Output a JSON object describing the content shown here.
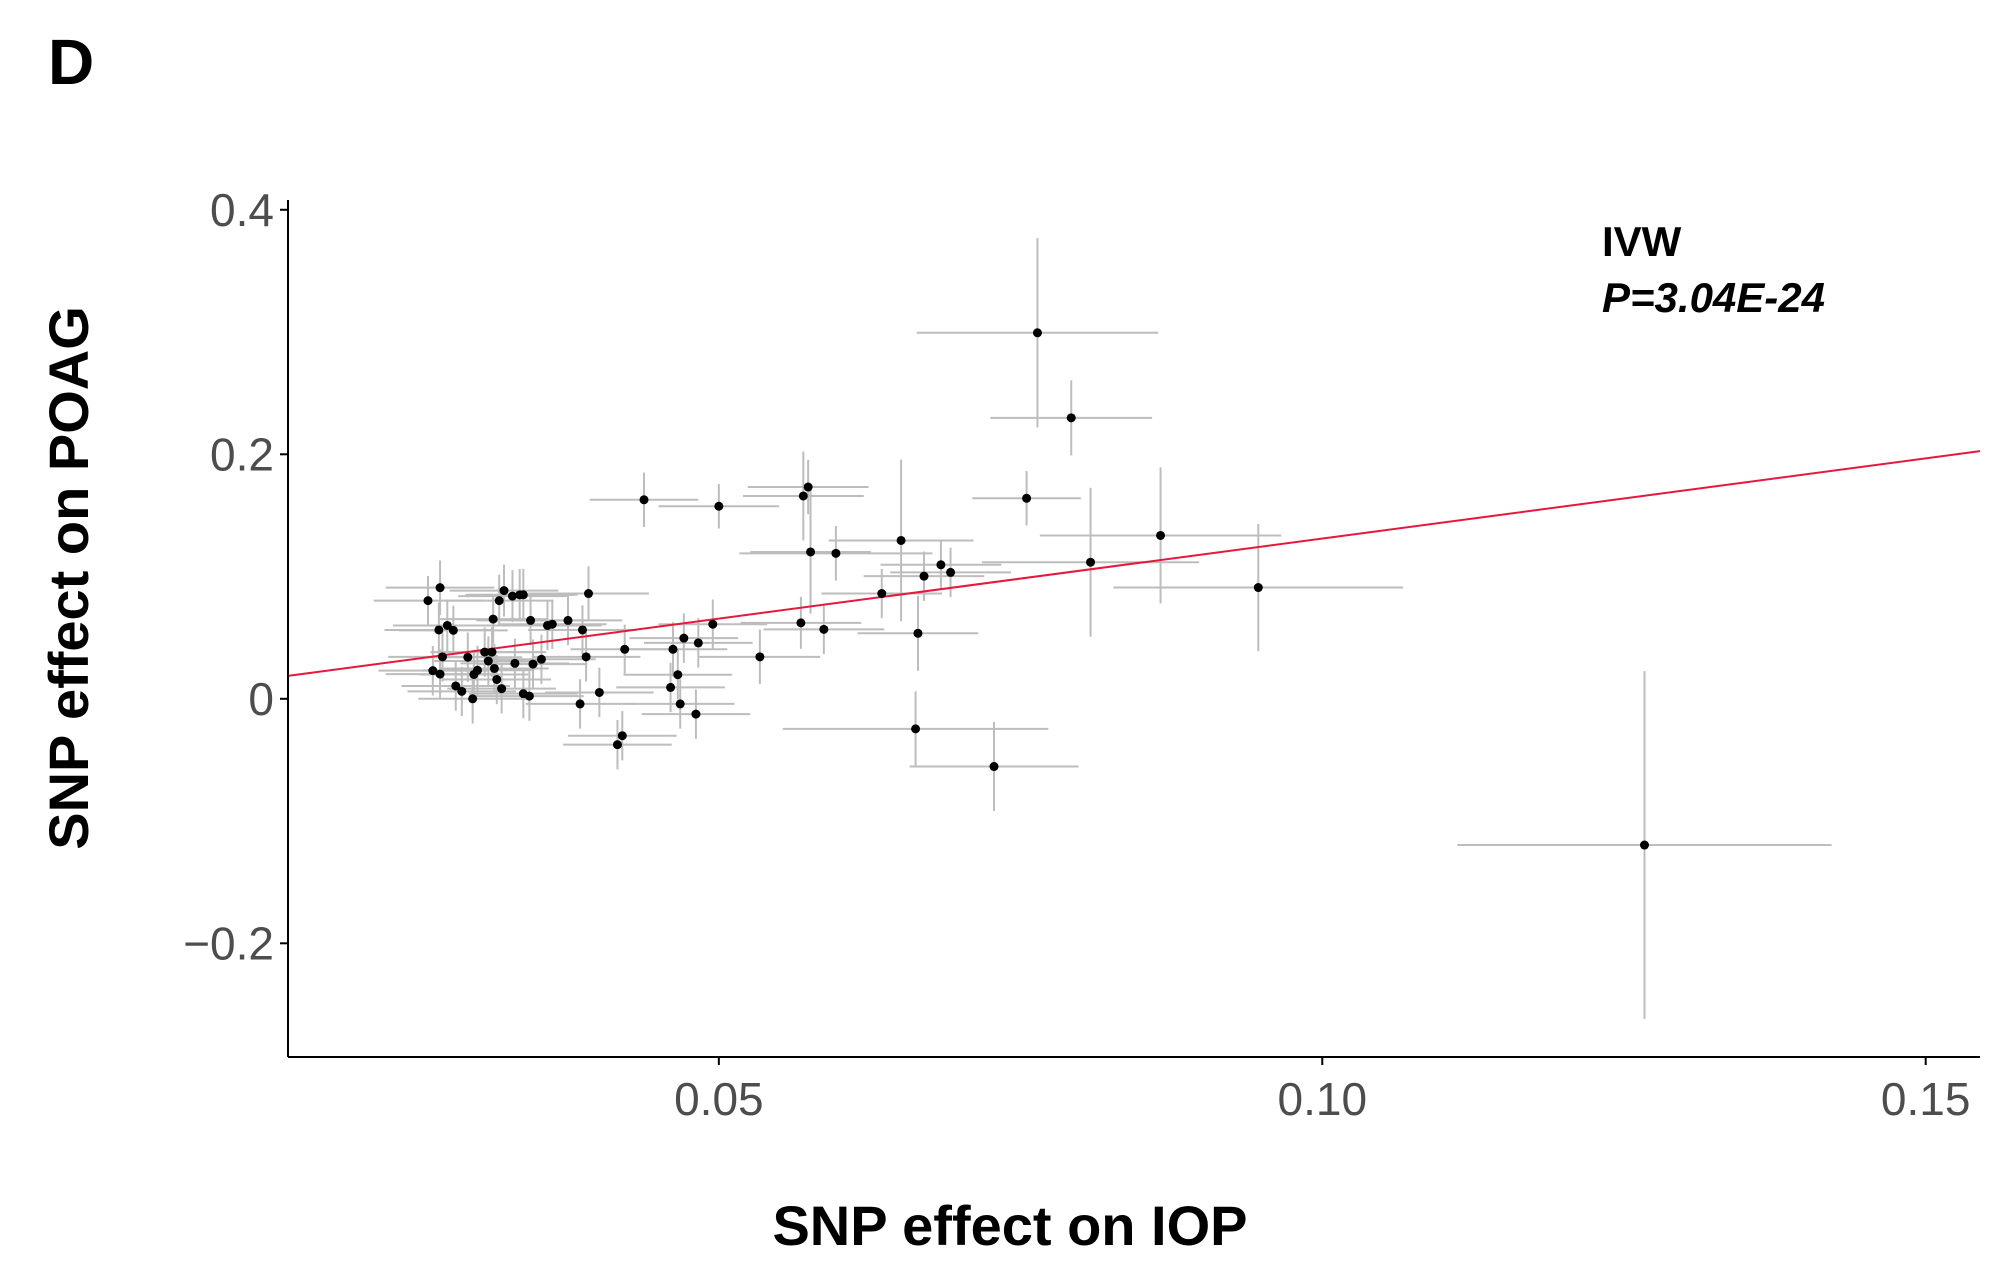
{
  "panel_label": "D",
  "colors": {
    "point": "#000000",
    "error_bar": "#bdbdbd",
    "fit_line": "#e8173c",
    "axis": "#000000",
    "tick_label": "#4d4d4d"
  },
  "annotation": {
    "method": "IVW",
    "p_value": "P=3.04E-24"
  },
  "chart_data": {
    "type": "scatter",
    "title": "",
    "xlabel": "SNP effect on IOP",
    "ylabel": "SNP effect on  POAG",
    "xlim": [
      0.0143,
      0.1545
    ],
    "ylim": [
      -0.293,
      0.408
    ],
    "x_ticks": [
      0.05,
      0.1,
      0.15
    ],
    "x_tick_labels": [
      "0.05",
      "0.10",
      "0.15"
    ],
    "y_ticks": [
      -0.2,
      0,
      0.2,
      0.4
    ],
    "y_tick_labels": [
      "−0.2",
      "0",
      "0.2",
      "0.4"
    ],
    "grid": false,
    "legend": "none",
    "fit_line": {
      "method": "IVW",
      "slope": 1.311,
      "intercept": 0.0
    },
    "points": [
      {
        "x": 0.0259,
        "y": 0.0803,
        "x_err": 0.0045,
        "y_err": 0.0202
      },
      {
        "x": 0.0269,
        "y": 0.0909,
        "x_err": 0.0045,
        "y_err": 0.0223
      },
      {
        "x": 0.0268,
        "y": 0.0563,
        "x_err": 0.0045,
        "y_err": 0.0223
      },
      {
        "x": 0.0275,
        "y": 0.06,
        "x_err": 0.0045,
        "y_err": 0.0212
      },
      {
        "x": 0.028,
        "y": 0.056,
        "x_err": 0.0045,
        "y_err": 0.0202
      },
      {
        "x": 0.0271,
        "y": 0.0343,
        "x_err": 0.0045,
        "y_err": 0.0202
      },
      {
        "x": 0.0263,
        "y": 0.023,
        "x_err": 0.0045,
        "y_err": 0.0202
      },
      {
        "x": 0.0269,
        "y": 0.0202,
        "x_err": 0.0045,
        "y_err": 0.0202
      },
      {
        "x": 0.0282,
        "y": 0.0105,
        "x_err": 0.0045,
        "y_err": 0.0202
      },
      {
        "x": 0.0287,
        "y": 0.0061,
        "x_err": 0.0045,
        "y_err": 0.0202
      },
      {
        "x": 0.0292,
        "y": 0.034,
        "x_err": 0.0045,
        "y_err": 0.0202
      },
      {
        "x": 0.0296,
        "y": 0.0,
        "x_err": 0.0045,
        "y_err": 0.0202
      },
      {
        "x": 0.0297,
        "y": 0.0199,
        "x_err": 0.0045,
        "y_err": 0.0202
      },
      {
        "x": 0.03,
        "y": 0.0233,
        "x_err": 0.0045,
        "y_err": 0.0202
      },
      {
        "x": 0.0306,
        "y": 0.0382,
        "x_err": 0.0045,
        "y_err": 0.0202
      },
      {
        "x": 0.0309,
        "y": 0.0309,
        "x_err": 0.0045,
        "y_err": 0.0202
      },
      {
        "x": 0.0312,
        "y": 0.0382,
        "x_err": 0.0045,
        "y_err": 0.0202
      },
      {
        "x": 0.0314,
        "y": 0.0248,
        "x_err": 0.0045,
        "y_err": 0.0202
      },
      {
        "x": 0.0313,
        "y": 0.0652,
        "x_err": 0.0045,
        "y_err": 0.0202
      },
      {
        "x": 0.0316,
        "y": 0.0158,
        "x_err": 0.0045,
        "y_err": 0.0202
      },
      {
        "x": 0.0318,
        "y": 0.0803,
        "x_err": 0.0045,
        "y_err": 0.0212
      },
      {
        "x": 0.0322,
        "y": 0.0885,
        "x_err": 0.0045,
        "y_err": 0.0212
      },
      {
        "x": 0.032,
        "y": 0.0083,
        "x_err": 0.0045,
        "y_err": 0.0202
      },
      {
        "x": 0.0329,
        "y": 0.084,
        "x_err": 0.0045,
        "y_err": 0.0212
      },
      {
        "x": 0.0331,
        "y": 0.029,
        "x_err": 0.0045,
        "y_err": 0.0202
      },
      {
        "x": 0.0335,
        "y": 0.085,
        "x_err": 0.0045,
        "y_err": 0.0212
      },
      {
        "x": 0.0338,
        "y": 0.0851,
        "x_err": 0.0045,
        "y_err": 0.0212
      },
      {
        "x": 0.0338,
        "y": 0.0042,
        "x_err": 0.0045,
        "y_err": 0.0202
      },
      {
        "x": 0.0343,
        "y": 0.0022,
        "x_err": 0.0045,
        "y_err": 0.0202
      },
      {
        "x": 0.0344,
        "y": 0.0641,
        "x_err": 0.0045,
        "y_err": 0.0202
      },
      {
        "x": 0.0346,
        "y": 0.0284,
        "x_err": 0.0045,
        "y_err": 0.0202
      },
      {
        "x": 0.0353,
        "y": 0.0323,
        "x_err": 0.0045,
        "y_err": 0.0202
      },
      {
        "x": 0.0358,
        "y": 0.06,
        "x_err": 0.0045,
        "y_err": 0.0202
      },
      {
        "x": 0.0362,
        "y": 0.061,
        "x_err": 0.0045,
        "y_err": 0.0202
      },
      {
        "x": 0.0375,
        "y": 0.0641,
        "x_err": 0.0045,
        "y_err": 0.0202
      },
      {
        "x": 0.0387,
        "y": 0.0563,
        "x_err": 0.0045,
        "y_err": 0.0202
      },
      {
        "x": 0.039,
        "y": 0.0343,
        "x_err": 0.0045,
        "y_err": 0.0202
      },
      {
        "x": 0.0392,
        "y": 0.0861,
        "x_err": 0.005,
        "y_err": 0.0223
      },
      {
        "x": 0.0385,
        "y": -0.0042,
        "x_err": 0.0045,
        "y_err": 0.0202
      },
      {
        "x": 0.0401,
        "y": 0.0052,
        "x_err": 0.0045,
        "y_err": 0.0202
      },
      {
        "x": 0.0416,
        "y": -0.0375,
        "x_err": 0.0045,
        "y_err": 0.0202
      },
      {
        "x": 0.042,
        "y": -0.0302,
        "x_err": 0.0045,
        "y_err": 0.0202
      },
      {
        "x": 0.0422,
        "y": 0.0405,
        "x_err": 0.0045,
        "y_err": 0.0202
      },
      {
        "x": 0.0438,
        "y": 0.1628,
        "x_err": 0.0045,
        "y_err": 0.0223
      },
      {
        "x": 0.0462,
        "y": 0.0405,
        "x_err": 0.0045,
        "y_err": 0.0223
      },
      {
        "x": 0.046,
        "y": 0.0093,
        "x_err": 0.0045,
        "y_err": 0.0202
      },
      {
        "x": 0.0466,
        "y": 0.0197,
        "x_err": 0.0045,
        "y_err": 0.0202
      },
      {
        "x": 0.0468,
        "y": -0.0042,
        "x_err": 0.0045,
        "y_err": 0.0202
      },
      {
        "x": 0.0471,
        "y": 0.0496,
        "x_err": 0.0045,
        "y_err": 0.0202
      },
      {
        "x": 0.0483,
        "y": 0.0457,
        "x_err": 0.0045,
        "y_err": 0.0202
      },
      {
        "x": 0.0481,
        "y": -0.0125,
        "x_err": 0.0045,
        "y_err": 0.0202
      },
      {
        "x": 0.0495,
        "y": 0.061,
        "x_err": 0.0045,
        "y_err": 0.0202
      },
      {
        "x": 0.05,
        "y": 0.1575,
        "x_err": 0.005,
        "y_err": 0.0182
      },
      {
        "x": 0.0534,
        "y": 0.0343,
        "x_err": 0.005,
        "y_err": 0.0223
      },
      {
        "x": 0.0568,
        "y": 0.0621,
        "x_err": 0.005,
        "y_err": 0.0212
      },
      {
        "x": 0.057,
        "y": 0.1659,
        "x_err": 0.005,
        "y_err": 0.0364
      },
      {
        "x": 0.0574,
        "y": 0.1732,
        "x_err": 0.005,
        "y_err": 0.0223
      },
      {
        "x": 0.0576,
        "y": 0.1201,
        "x_err": 0.005,
        "y_err": 0.0504
      },
      {
        "x": 0.0587,
        "y": 0.0568,
        "x_err": 0.005,
        "y_err": 0.0202
      },
      {
        "x": 0.0597,
        "y": 0.119,
        "x_err": 0.008,
        "y_err": 0.0223
      },
      {
        "x": 0.0635,
        "y": 0.0861,
        "x_err": 0.005,
        "y_err": 0.0202
      },
      {
        "x": 0.0651,
        "y": 0.1295,
        "x_err": 0.006,
        "y_err": 0.0661
      },
      {
        "x": 0.0663,
        "y": -0.0246,
        "x_err": 0.011,
        "y_err": 0.0307
      },
      {
        "x": 0.0665,
        "y": 0.0536,
        "x_err": 0.005,
        "y_err": 0.0307
      },
      {
        "x": 0.067,
        "y": 0.1003,
        "x_err": 0.005,
        "y_err": 0.0202
      },
      {
        "x": 0.0684,
        "y": 0.1096,
        "x_err": 0.005,
        "y_err": 0.0202
      },
      {
        "x": 0.0692,
        "y": 0.1034,
        "x_err": 0.005,
        "y_err": 0.0202
      },
      {
        "x": 0.0728,
        "y": -0.0554,
        "x_err": 0.007,
        "y_err": 0.0364
      },
      {
        "x": 0.0755,
        "y": 0.164,
        "x_err": 0.0045,
        "y_err": 0.0223
      },
      {
        "x": 0.0764,
        "y": 0.2994,
        "x_err": 0.01,
        "y_err": 0.0775
      },
      {
        "x": 0.0792,
        "y": 0.2298,
        "x_err": 0.0067,
        "y_err": 0.0307
      },
      {
        "x": 0.0808,
        "y": 0.1117,
        "x_err": 0.009,
        "y_err": 0.0609
      },
      {
        "x": 0.0866,
        "y": 0.1336,
        "x_err": 0.01,
        "y_err": 0.0557
      },
      {
        "x": 0.0947,
        "y": 0.091,
        "x_err": 0.012,
        "y_err": 0.052
      },
      {
        "x": 0.1267,
        "y": -0.1196,
        "x_err": 0.0155,
        "y_err": 0.1422
      }
    ]
  }
}
